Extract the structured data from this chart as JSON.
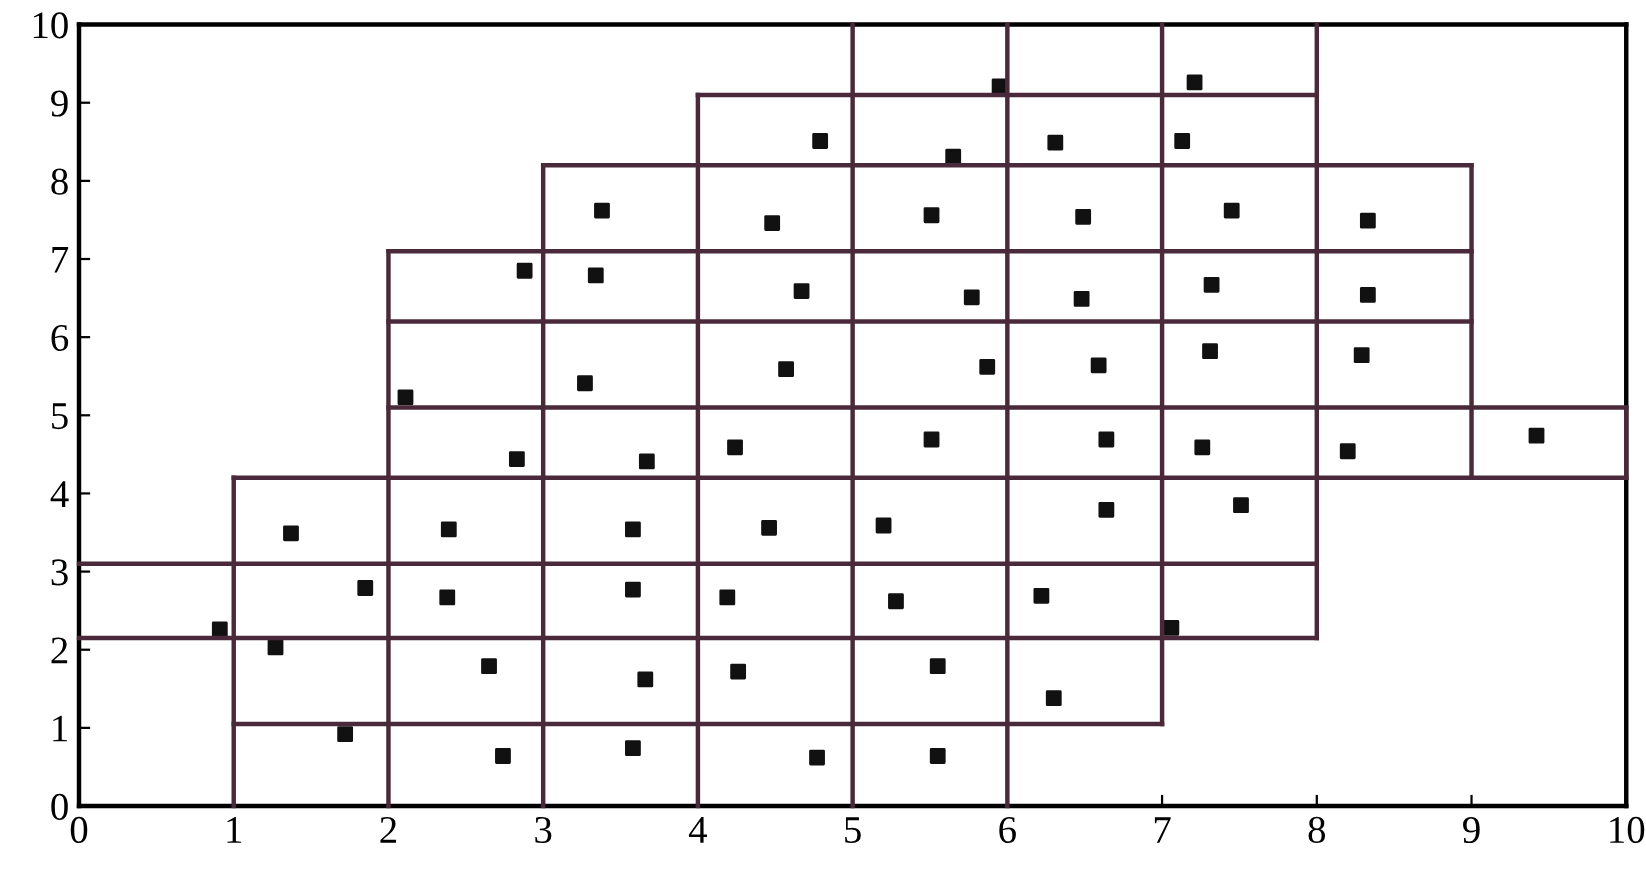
{
  "chart_data": {
    "type": "scatter",
    "marker": "square",
    "xlim": [
      0,
      10
    ],
    "ylim": [
      0,
      10
    ],
    "xticks": [
      0,
      1,
      2,
      3,
      4,
      5,
      6,
      7,
      8,
      9,
      10
    ],
    "yticks": [
      0,
      1,
      2,
      3,
      4,
      5,
      6,
      7,
      8,
      9,
      10
    ],
    "series": [
      {
        "type": "line",
        "marker": "none",
        "color": "#4a2a3a",
        "x": [
          0,
          8
        ],
        "values": [
          2.15,
          2.15
        ]
      },
      {
        "type": "line",
        "marker": "none",
        "color": "#4a2a3a",
        "x": [
          0,
          8
        ],
        "values": [
          3.1,
          3.1
        ]
      },
      {
        "type": "line",
        "marker": "none",
        "color": "#4a2a3a",
        "x": [
          1,
          7
        ],
        "values": [
          1.05,
          1.05
        ]
      },
      {
        "type": "line",
        "marker": "none",
        "color": "#4a2a3a",
        "x": [
          1,
          10
        ],
        "values": [
          4.2,
          4.2
        ]
      },
      {
        "type": "line",
        "marker": "none",
        "color": "#4a2a3a",
        "x": [
          2,
          10
        ],
        "values": [
          5.1,
          5.1
        ]
      },
      {
        "type": "line",
        "marker": "none",
        "color": "#4a2a3a",
        "x": [
          2,
          9
        ],
        "values": [
          6.2,
          6.2
        ]
      },
      {
        "type": "line",
        "marker": "none",
        "color": "#4a2a3a",
        "x": [
          2,
          9
        ],
        "values": [
          7.1,
          7.1
        ]
      },
      {
        "type": "line",
        "marker": "none",
        "color": "#4a2a3a",
        "x": [
          3,
          9
        ],
        "values": [
          8.2,
          8.2
        ]
      },
      {
        "type": "line",
        "marker": "none",
        "color": "#4a2a3a",
        "x": [
          4,
          8
        ],
        "values": [
          9.1,
          9.1
        ]
      },
      {
        "type": "line",
        "marker": "none",
        "color": "#4a2a3a",
        "x": [
          1,
          1
        ],
        "values": [
          0,
          4.2
        ]
      },
      {
        "type": "line",
        "marker": "none",
        "color": "#4a2a3a",
        "x": [
          2,
          2
        ],
        "values": [
          0,
          7.1
        ]
      },
      {
        "type": "line",
        "marker": "none",
        "color": "#4a2a3a",
        "x": [
          3,
          3
        ],
        "values": [
          0,
          8.2
        ]
      },
      {
        "type": "line",
        "marker": "none",
        "color": "#4a2a3a",
        "x": [
          4,
          4
        ],
        "values": [
          0,
          9.1
        ]
      },
      {
        "type": "line",
        "marker": "none",
        "color": "#4a2a3a",
        "x": [
          5,
          5
        ],
        "values": [
          0,
          10
        ]
      },
      {
        "type": "line",
        "marker": "none",
        "color": "#4a2a3a",
        "x": [
          6,
          6
        ],
        "values": [
          0,
          10
        ]
      },
      {
        "type": "line",
        "marker": "none",
        "color": "#4a2a3a",
        "x": [
          7,
          7
        ],
        "values": [
          1.05,
          10
        ]
      },
      {
        "type": "line",
        "marker": "none",
        "color": "#4a2a3a",
        "x": [
          8,
          8
        ],
        "values": [
          2.15,
          10
        ]
      },
      {
        "type": "line",
        "marker": "none",
        "color": "#4a2a3a",
        "x": [
          9,
          9
        ],
        "values": [
          4.2,
          8.2
        ]
      },
      {
        "type": "line",
        "marker": "none",
        "color": "#4a2a3a",
        "x": [
          10,
          10
        ],
        "values": [
          4.2,
          5.1
        ]
      },
      {
        "color": "#111111",
        "x": [
          0.91,
          1.27,
          1.37,
          1.72,
          1.85,
          2.11,
          2.39,
          2.38,
          2.65,
          2.74,
          2.83,
          2.88,
          3.27,
          3.34,
          3.38,
          3.58,
          3.58,
          3.67,
          3.66,
          3.58,
          4.19,
          4.24,
          4.26,
          4.46,
          4.48,
          4.57,
          4.67,
          4.77,
          4.79,
          5.2,
          5.28,
          5.51,
          5.51,
          5.55,
          5.55,
          5.65,
          5.77,
          5.87,
          5.95,
          6.22,
          6.3,
          6.31,
          6.49,
          6.48,
          6.59,
          6.64,
          6.64,
          7.06,
          7.13,
          7.21,
          7.26,
          7.31,
          7.32,
          7.45,
          7.51,
          8.2,
          8.29,
          8.33,
          8.33,
          9.42
        ],
        "values": [
          2.26,
          2.03,
          3.49,
          0.92,
          2.79,
          5.23,
          3.54,
          2.67,
          1.79,
          0.64,
          4.44,
          6.85,
          5.41,
          6.79,
          7.62,
          3.54,
          2.77,
          4.41,
          1.62,
          0.74,
          2.67,
          4.59,
          1.72,
          3.56,
          7.46,
          5.59,
          6.59,
          0.62,
          8.51,
          3.59,
          2.62,
          4.69,
          7.56,
          0.64,
          1.79,
          8.31,
          6.51,
          5.62,
          9.21,
          2.69,
          1.38,
          8.49,
          7.54,
          6.49,
          5.64,
          4.69,
          3.79,
          2.28,
          8.51,
          9.26,
          4.59,
          5.82,
          6.67,
          7.62,
          3.85,
          4.54,
          5.77,
          6.54,
          7.49,
          4.74
        ]
      }
    ]
  }
}
